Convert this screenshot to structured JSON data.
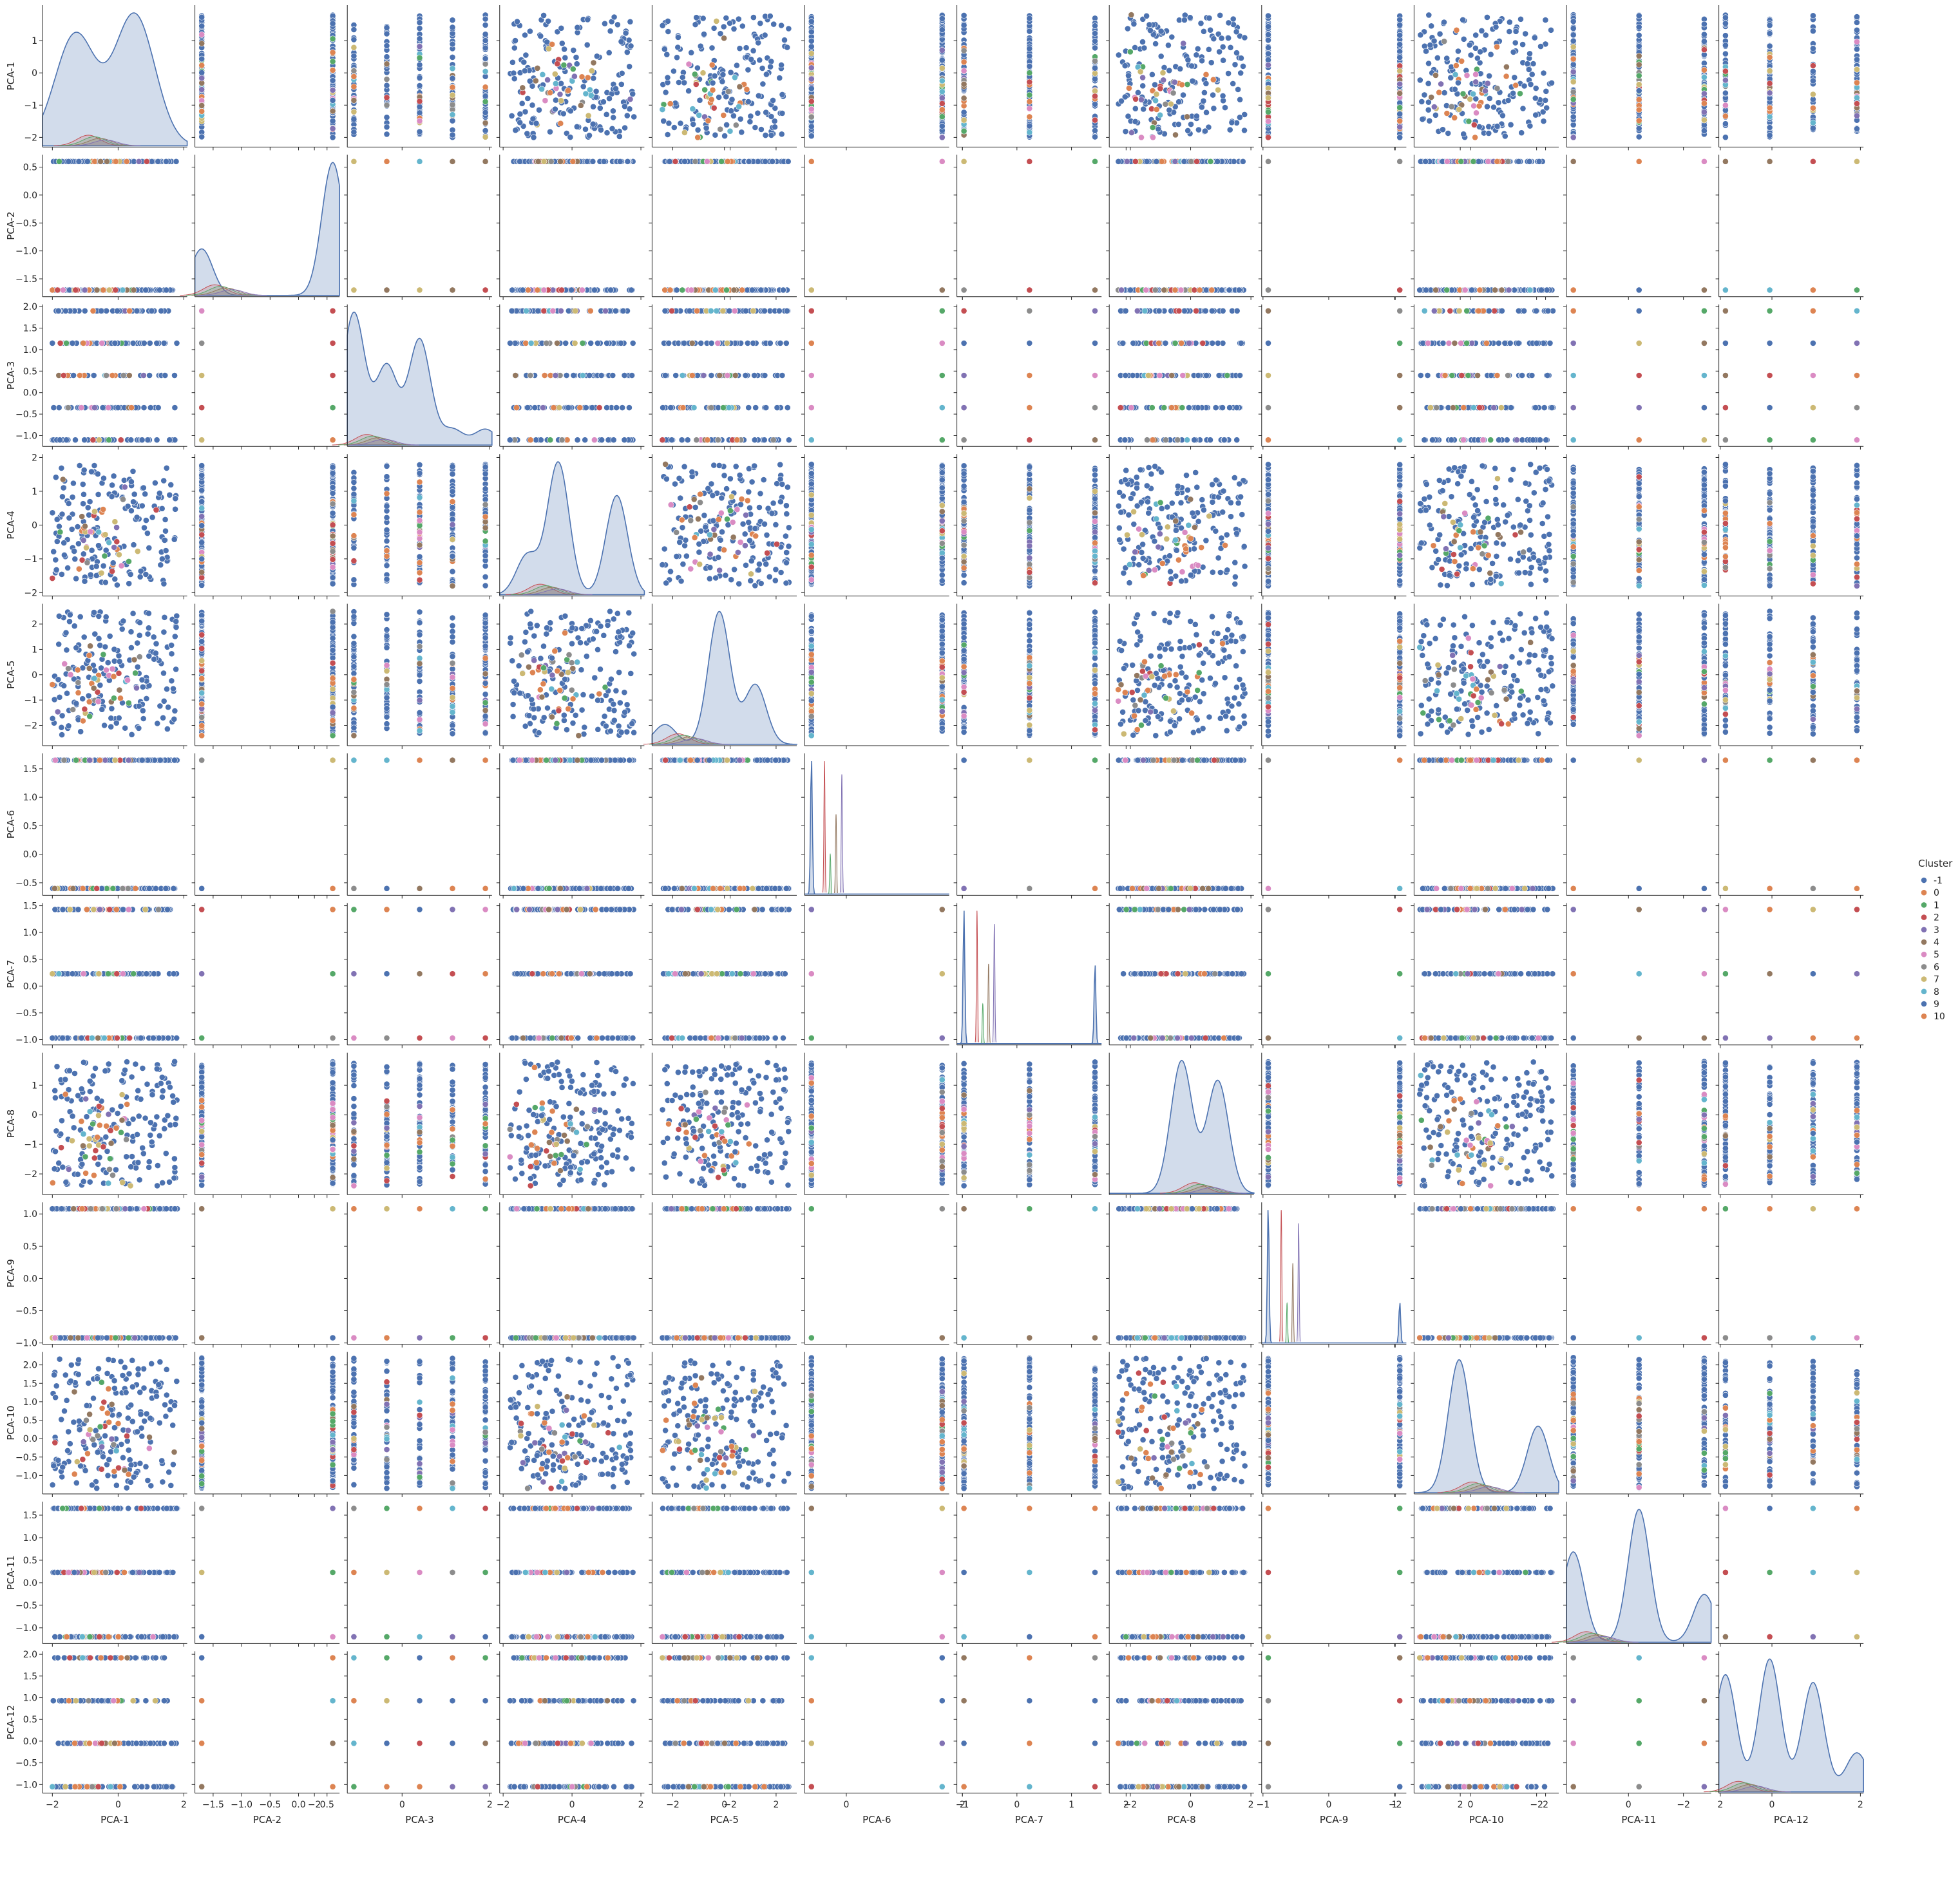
{
  "chart_data": {
    "type": "scatter",
    "subtype": "pairplot",
    "variables": [
      "PCA-1",
      "PCA-2",
      "PCA-3",
      "PCA-4",
      "PCA-5",
      "PCA-6",
      "PCA-7",
      "PCA-8",
      "PCA-9",
      "PCA-10",
      "PCA-11",
      "PCA-12"
    ],
    "diagonal": "kde",
    "legend": {
      "title": "Cluster",
      "placement": "right",
      "entries": [
        {
          "label": "-1",
          "color": "#4c72b0"
        },
        {
          "label": "0",
          "color": "#dd8452"
        },
        {
          "label": "1",
          "color": "#55a868"
        },
        {
          "label": "2",
          "color": "#c44e52"
        },
        {
          "label": "3",
          "color": "#8172b3"
        },
        {
          "label": "4",
          "color": "#937860"
        },
        {
          "label": "5",
          "color": "#da8bc3"
        },
        {
          "label": "6",
          "color": "#8c8c8c"
        },
        {
          "label": "7",
          "color": "#ccb974"
        },
        {
          "label": "8",
          "color": "#64b5cd"
        },
        {
          "label": "9",
          "color": "#4c72b0"
        },
        {
          "label": "10",
          "color": "#dd8452"
        }
      ]
    },
    "axes": [
      {
        "name": "PCA-1",
        "kind": "continuous",
        "range": [
          -2.0,
          1.8
        ],
        "lim": [
          -2.3,
          2.1
        ],
        "ticks": [
          -2,
          -1,
          0,
          1
        ],
        "tick_labels": [
          "−2",
          "−1",
          "0",
          "1"
        ],
        "xticks": [
          -2,
          0,
          2
        ],
        "xtick_labels": [
          "−2",
          "0",
          "2"
        ]
      },
      {
        "name": "PCA-2",
        "kind": "discrete",
        "levels": [
          -1.7,
          0.6
        ],
        "lim": [
          -1.82,
          0.72
        ],
        "ticks": [
          -1.5,
          -1.0,
          -0.5,
          0.0,
          0.5
        ],
        "tick_labels": [
          "−1.5",
          "−1.0",
          "−0.5",
          "0.0",
          "0.5"
        ],
        "xticks": [
          -1.5,
          -1.0,
          -0.5,
          0.0,
          0.5
        ],
        "xtick_labels": [
          "−1.5",
          "−1.0",
          "−0.5",
          "0.0",
          "0.5"
        ]
      },
      {
        "name": "PCA-3",
        "kind": "discrete",
        "levels": [
          -1.1,
          -0.35,
          0.4,
          1.15,
          1.9
        ],
        "lim": [
          -1.25,
          2.05
        ],
        "ticks": [
          -1.0,
          -0.5,
          0.0,
          0.5,
          1.0,
          1.5,
          2.0
        ],
        "tick_labels": [
          "−1.0",
          "−0.5",
          "0.0",
          "0.5",
          "1.0",
          "1.5",
          "2.0"
        ],
        "xticks": [
          -2,
          0,
          2
        ],
        "xtick_labels": [
          "−2",
          "0",
          "2"
        ]
      },
      {
        "name": "PCA-4",
        "kind": "continuous",
        "range": [
          -1.8,
          1.8
        ],
        "lim": [
          -2.1,
          2.1
        ],
        "ticks": [
          -2,
          -1,
          0,
          1,
          2
        ],
        "tick_labels": [
          "−2",
          "−1",
          "0",
          "1",
          "2"
        ],
        "xticks": [
          -2,
          0,
          2
        ],
        "xtick_labels": [
          "−2",
          "0",
          "2"
        ]
      },
      {
        "name": "PCA-5",
        "kind": "continuous",
        "range": [
          -2.4,
          2.5
        ],
        "lim": [
          -2.8,
          2.8
        ],
        "ticks": [
          -2,
          -1,
          0,
          1,
          2
        ],
        "tick_labels": [
          "−2",
          "−1",
          "0",
          "1",
          "2"
        ],
        "xticks": [
          -2,
          0,
          2
        ],
        "xtick_labels": [
          "−2",
          "0",
          "2"
        ]
      },
      {
        "name": "PCA-6",
        "kind": "discrete",
        "levels": [
          -0.6,
          1.65
        ],
        "lim": [
          -0.72,
          1.77
        ],
        "ticks": [
          -0.5,
          0.0,
          0.5,
          1.0,
          1.5
        ],
        "tick_labels": [
          "−0.5",
          "0.0",
          "0.5",
          "1.0",
          "1.5"
        ],
        "xticks": [
          -2,
          0,
          2
        ],
        "xtick_labels": [
          "−2",
          "0",
          "2"
        ]
      },
      {
        "name": "PCA-7",
        "kind": "discrete",
        "levels": [
          -0.97,
          0.23,
          1.43
        ],
        "lim": [
          -1.1,
          1.55
        ],
        "ticks": [
          -1.0,
          -0.5,
          0.0,
          0.5,
          1.0,
          1.5
        ],
        "tick_labels": [
          "−1.0",
          "−0.5",
          "0.0",
          "0.5",
          "1.0",
          "1.5"
        ],
        "xticks": [
          -1,
          0,
          1,
          2
        ],
        "xtick_labels": [
          "−1",
          "0",
          "1",
          "2"
        ]
      },
      {
        "name": "PCA-8",
        "kind": "continuous",
        "range": [
          -2.4,
          1.8
        ],
        "lim": [
          -2.7,
          2.1
        ],
        "ticks": [
          -2,
          -1,
          0,
          1
        ],
        "tick_labels": [
          "−2",
          "−1",
          "0",
          "1"
        ],
        "xticks": [
          -2,
          0,
          2
        ],
        "xtick_labels": [
          "−2",
          "0",
          "2"
        ]
      },
      {
        "name": "PCA-9",
        "kind": "discrete",
        "levels": [
          -0.92,
          1.08
        ],
        "lim": [
          -1.02,
          1.18
        ],
        "ticks": [
          -1.0,
          -0.5,
          0.0,
          0.5,
          1.0
        ],
        "tick_labels": [
          "−1.0",
          "−0.5",
          "0.0",
          "0.5",
          "1.0"
        ],
        "xticks": [
          -1,
          0,
          1,
          2
        ],
        "xtick_labels": [
          "−1",
          "0",
          "1",
          "2"
        ]
      },
      {
        "name": "PCA-10",
        "kind": "continuous",
        "range": [
          -1.35,
          2.2
        ],
        "lim": [
          -1.5,
          2.35
        ],
        "ticks": [
          -1.0,
          -0.5,
          0.0,
          0.5,
          1.0,
          1.5,
          2.0
        ],
        "tick_labels": [
          "−1.0",
          "−0.5",
          "0.0",
          "0.5",
          "1.0",
          "1.5",
          "2.0"
        ],
        "xticks": [
          -2,
          0,
          2
        ],
        "xtick_labels": [
          "−2",
          "0",
          "2"
        ]
      },
      {
        "name": "PCA-11",
        "kind": "discrete",
        "levels": [
          -1.2,
          0.23,
          1.65
        ],
        "lim": [
          -1.35,
          1.8
        ],
        "ticks": [
          -1.0,
          -0.5,
          0.0,
          0.5,
          1.0,
          1.5
        ],
        "tick_labels": [
          "−1.0",
          "−0.5",
          "0.0",
          "0.5",
          "1.0",
          "1.5"
        ],
        "xticks": [
          -2,
          0,
          2
        ],
        "xtick_labels": [
          "−2",
          "0",
          "2"
        ]
      },
      {
        "name": "PCA-12",
        "kind": "discrete",
        "levels": [
          -1.05,
          -0.05,
          0.93,
          1.92
        ],
        "lim": [
          -1.2,
          2.07
        ],
        "ticks": [
          -1.0,
          -0.5,
          0.0,
          0.5,
          1.0,
          1.5,
          2.0
        ],
        "tick_labels": [
          "−1.0",
          "−0.5",
          "0.0",
          "0.5",
          "1.0",
          "1.5",
          "2.0"
        ],
        "xticks": [
          -2,
          0,
          2
        ],
        "xtick_labels": [
          "−2",
          "0",
          "2"
        ]
      }
    ],
    "diagonal_kde": [
      {
        "name": "PCA-1",
        "peaks": [
          [
            -1.3,
            0.85
          ],
          [
            0.5,
            1.0
          ]
        ],
        "shape": "broad-bimodal"
      },
      {
        "name": "PCA-2",
        "peaks": [
          [
            -1.7,
            0.35
          ],
          [
            0.6,
            1.0
          ]
        ]
      },
      {
        "name": "PCA-3",
        "peaks": [
          [
            -1.1,
            1.0
          ],
          [
            -0.35,
            0.6
          ],
          [
            0.4,
            0.8
          ],
          [
            1.15,
            0.12
          ],
          [
            1.9,
            0.12
          ]
        ]
      },
      {
        "name": "PCA-4",
        "peaks": [
          [
            -1.3,
            0.3
          ],
          [
            -0.4,
            1.0
          ],
          [
            1.3,
            0.75
          ]
        ]
      },
      {
        "name": "PCA-5",
        "peaks": [
          [
            -2.3,
            0.15
          ],
          [
            -0.2,
            1.0
          ],
          [
            1.2,
            0.45
          ]
        ]
      },
      {
        "name": "PCA-6",
        "peaks": [
          [
            -0.6,
            1.0
          ]
        ],
        "shape": "spike"
      },
      {
        "name": "PCA-7",
        "peaks": [
          [
            -0.97,
            1.0
          ],
          [
            1.43,
            0.6
          ]
        ],
        "shape": "spike"
      },
      {
        "name": "PCA-8",
        "peaks": [
          [
            -0.3,
            1.0
          ],
          [
            0.9,
            0.85
          ]
        ]
      },
      {
        "name": "PCA-9",
        "peaks": [
          [
            -0.92,
            1.0
          ],
          [
            1.08,
            0.3
          ]
        ],
        "shape": "spike"
      },
      {
        "name": "PCA-10",
        "peaks": [
          [
            -0.3,
            1.0
          ],
          [
            1.8,
            0.5
          ]
        ]
      },
      {
        "name": "PCA-11",
        "peaks": [
          [
            -1.2,
            0.68
          ],
          [
            0.23,
            1.0
          ],
          [
            1.65,
            0.36
          ]
        ]
      },
      {
        "name": "PCA-12",
        "peaks": [
          [
            -1.05,
            0.75
          ],
          [
            -0.05,
            0.85
          ],
          [
            0.93,
            0.7
          ],
          [
            1.92,
            0.25
          ]
        ]
      }
    ]
  }
}
